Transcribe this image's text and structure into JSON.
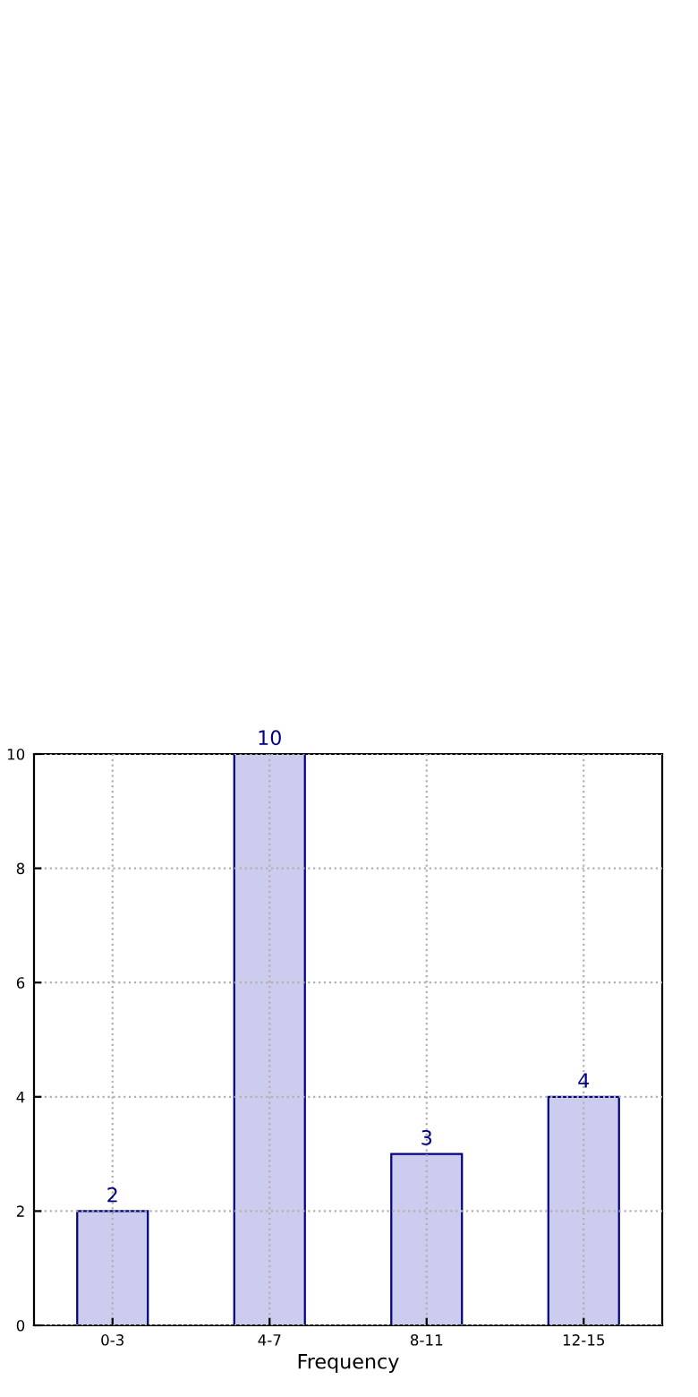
{
  "chart_data": {
    "type": "bar",
    "xlabel": "Frequency",
    "categories": [
      "0-3",
      "4-7",
      "8-11",
      "12-15"
    ],
    "series": [
      {
        "color": "#ccccee",
        "values": [
          2,
          10,
          3,
          4
        ]
      }
    ],
    "ylim": [
      0,
      10
    ],
    "yticks": [
      0,
      2,
      4,
      6,
      8,
      10
    ],
    "grid": true,
    "line_style": "dotted",
    "data_labels": true
  }
}
